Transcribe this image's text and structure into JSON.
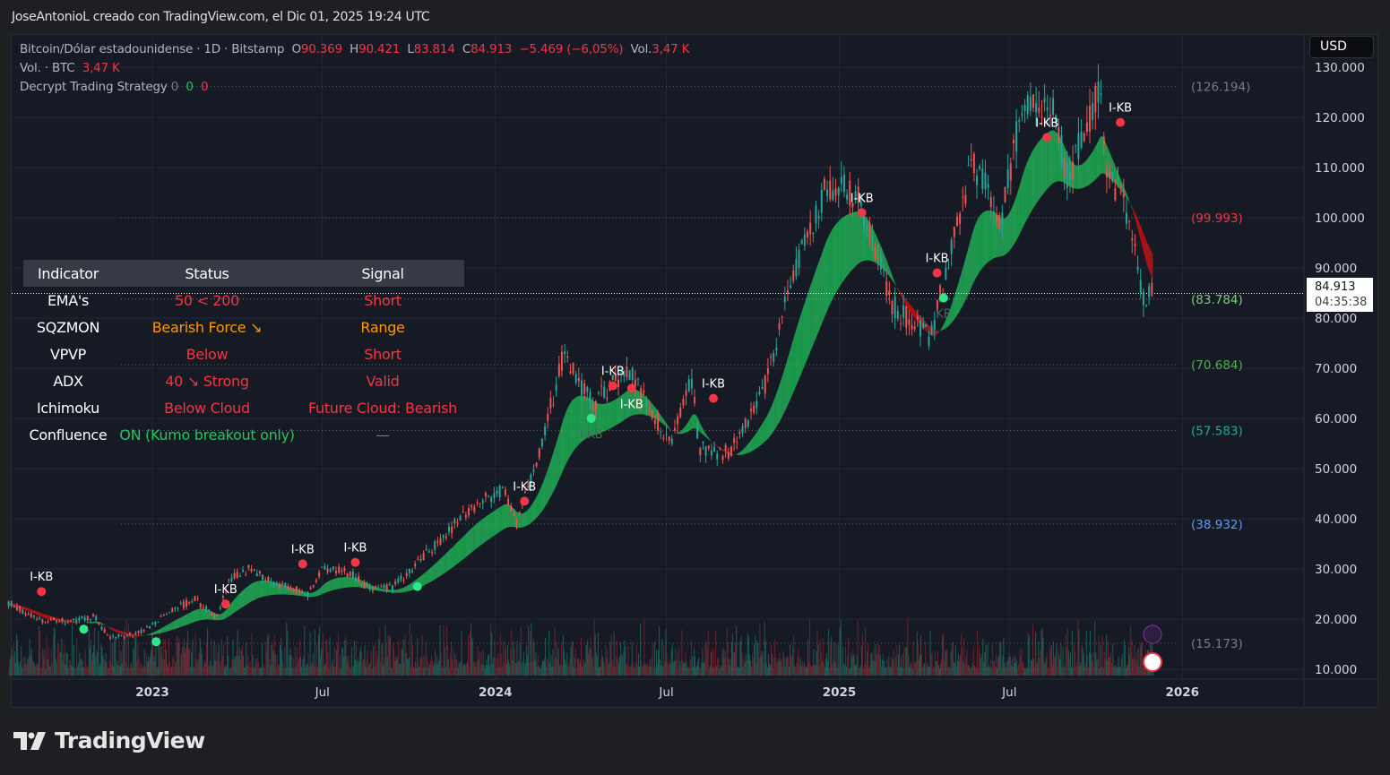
{
  "credit": "JoseAntonioL creado con TradingView.com, el Dic 01, 2025 19:24 UTC",
  "legend": {
    "symbol": "Bitcoin/Dólar estadounidense · 1D · Bitstamp",
    "o_label": "O",
    "o": "90.369",
    "h_label": "H",
    "h": "90.421",
    "l_label": "L",
    "l": "83.814",
    "c_label": "C",
    "c": "84.913",
    "change": "−5.469 (−6,05%)",
    "vol_label": "Vol.",
    "vol": "3,47 K",
    "vol_line_label": "Vol. · BTC",
    "vol_line_value": "3,47 K",
    "strategy": "Decrypt Trading Strategy",
    "strategy_values": [
      "0",
      "0",
      "0"
    ]
  },
  "currency_button": "USD",
  "last_price": {
    "price": "84.913",
    "countdown": "04:35:38"
  },
  "table": {
    "headers": [
      "Indicator",
      "Status",
      "Signal"
    ],
    "rows": [
      {
        "indicator": "EMA's",
        "status": "50 < 200",
        "signal": "Short",
        "status_color": "red",
        "signal_color": "red"
      },
      {
        "indicator": "SQZMON",
        "status": "Bearish Force ↘",
        "signal": "Range",
        "status_color": "org",
        "signal_color": "org"
      },
      {
        "indicator": "VPVP",
        "status": "Below",
        "signal": "Short",
        "status_color": "red",
        "signal_color": "red"
      },
      {
        "indicator": "ADX",
        "status": "40 ↘ Strong",
        "signal": "Valid",
        "status_color": "red",
        "signal_color": "red"
      },
      {
        "indicator": "Ichimoku",
        "status": "Below Cloud",
        "signal": "Future Cloud: Bearish",
        "status_color": "red",
        "signal_color": "red"
      },
      {
        "indicator": "Confluence",
        "status": "ON (Kumo breakout only)",
        "signal": "—",
        "status_color": "grn",
        "signal_color": "gry"
      }
    ]
  },
  "logo_text": "TradingView",
  "colors": {
    "up": "#22c55e",
    "down": "#f23645",
    "cloud_bull": "#22c55e",
    "cloud_bear": "#d01010",
    "background": "#161a25"
  },
  "chart_data": {
    "type": "line",
    "title": "Bitcoin/Dólar estadounidense · 1D · Bitstamp",
    "y_unit": "thousand USD",
    "ylim": [
      5,
      132
    ],
    "y_ticks": [
      "10.000",
      "20.000",
      "30.000",
      "40.000",
      "50.000",
      "60.000",
      "70.000",
      "80.000",
      "90.000",
      "100.000",
      "110.000",
      "120.000",
      "130.000"
    ],
    "x_ticks": [
      {
        "label": "2023",
        "date": "2023-01-01"
      },
      {
        "label": "Jul",
        "date": "2023-07-01"
      },
      {
        "label": "2024",
        "date": "2024-01-01"
      },
      {
        "label": "Jul",
        "date": "2024-07-01"
      },
      {
        "label": "2025",
        "date": "2025-01-01"
      },
      {
        "label": "Jul",
        "date": "2025-07-01"
      },
      {
        "label": "2026",
        "date": "2026-01-01"
      }
    ],
    "grid": true,
    "series": [
      {
        "x": [
          "2022-08-01",
          "2022-09-01",
          "2022-10-01",
          "2022-11-01",
          "2022-11-15",
          "2022-12-15",
          "2023-01-15",
          "2023-02-15",
          "2023-03-10",
          "2023-03-25",
          "2023-04-15",
          "2023-05-15",
          "2023-06-15",
          "2023-07-01",
          "2023-08-01",
          "2023-08-20",
          "2023-09-15",
          "2023-10-25",
          "2023-12-05",
          "2024-01-10",
          "2024-01-23",
          "2024-02-15",
          "2024-03-13",
          "2024-04-15",
          "2024-05-20",
          "2024-07-05",
          "2024-07-28",
          "2024-08-05",
          "2024-09-06",
          "2024-10-15",
          "2024-11-12",
          "2024-12-17",
          "2025-01-20",
          "2025-02-28",
          "2025-04-08",
          "2025-05-22",
          "2025-06-22",
          "2025-07-14",
          "2025-08-14",
          "2025-09-01",
          "2025-10-06",
          "2025-10-10",
          "2025-11-04",
          "2025-11-21",
          "2025-12-01"
        ],
        "y": [
          23.3,
          20,
          19.5,
          20.5,
          16.5,
          16.8,
          21,
          24,
          20,
          28,
          30,
          27,
          25,
          30.5,
          29,
          26,
          26.5,
          34,
          42,
          46,
          39,
          52,
          72,
          63,
          70,
          55,
          68,
          54,
          53,
          67,
          88,
          106,
          105,
          82,
          76,
          111,
          100,
          122,
          123,
          108,
          126,
          112,
          100,
          83,
          84.9
        ]
      }
    ],
    "levels": [
      {
        "value": 126.194,
        "label": "(126.194)",
        "color": "#787b86"
      },
      {
        "value": 99.993,
        "label": "(99.993)",
        "color": "#f23645"
      },
      {
        "value": 83.784,
        "label": "(83.784)",
        "color": "#81c784"
      },
      {
        "value": 70.684,
        "label": "(70.684)",
        "color": "#4caf50"
      },
      {
        "value": 57.583,
        "label": "(57.583)",
        "color": "#26a69a"
      },
      {
        "value": 38.932,
        "label": "(38.932)",
        "color": "#5b9cf6"
      },
      {
        "value": 15.173,
        "label": "(15.173)",
        "color": "#787b86"
      }
    ],
    "markers": [
      {
        "date": "2022-09-05",
        "y": 25.5,
        "kind": "sell",
        "label": "I-KB"
      },
      {
        "date": "2023-03-20",
        "y": 23,
        "kind": "sell",
        "label": "I-KB"
      },
      {
        "date": "2023-06-10",
        "y": 31,
        "kind": "sell",
        "label": "I-KB"
      },
      {
        "date": "2023-08-05",
        "y": 31.3,
        "kind": "sell",
        "label": "I-KB"
      },
      {
        "date": "2024-02-01",
        "y": 43.5,
        "kind": "sell",
        "label": "I-KB"
      },
      {
        "date": "2024-05-05",
        "y": 66.5,
        "kind": "sell",
        "label": "I-KB"
      },
      {
        "date": "2024-05-25",
        "y": 66,
        "kind": "sell",
        "label": "I-KB"
      },
      {
        "date": "2024-08-20",
        "y": 64,
        "kind": "sell",
        "label": "I-KB"
      },
      {
        "date": "2025-01-25",
        "y": 101,
        "kind": "sell",
        "label": "I-KB"
      },
      {
        "date": "2025-04-15",
        "y": 89,
        "kind": "sell",
        "label": "I-KB"
      },
      {
        "date": "2025-08-10",
        "y": 116,
        "kind": "sell",
        "label": "I-KB"
      },
      {
        "date": "2025-10-27",
        "y": 119,
        "kind": "sell",
        "label": "I-KB"
      },
      {
        "date": "2022-10-20",
        "y": 18,
        "kind": "buy",
        "label": ""
      },
      {
        "date": "2023-01-05",
        "y": 15.5,
        "kind": "buy",
        "label": ""
      },
      {
        "date": "2023-10-10",
        "y": 26.5,
        "kind": "buy",
        "label": ""
      },
      {
        "date": "2024-04-12",
        "y": 60,
        "kind": "buy",
        "label": "I-KB"
      },
      {
        "date": "2025-04-22",
        "y": 84,
        "kind": "buy",
        "label": "KB"
      }
    ]
  }
}
